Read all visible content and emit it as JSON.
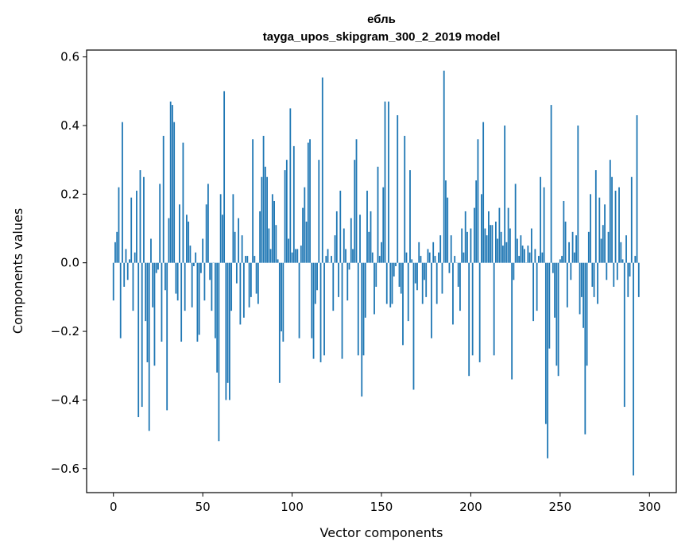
{
  "chart_data": {
    "type": "bar",
    "title_line1": "ебль",
    "title_line2": "tayga_upos_skipgram_300_2_2019 model",
    "xlabel": "Vector components",
    "ylabel": "Components values",
    "xlim": [
      -15,
      315
    ],
    "ylim": [
      -0.67,
      0.62
    ],
    "x_ticks": [
      0,
      50,
      100,
      150,
      200,
      250,
      300
    ],
    "x_tick_labels": [
      "0",
      "50",
      "100",
      "150",
      "200",
      "250",
      "300"
    ],
    "y_ticks": [
      -0.6,
      -0.4,
      -0.2,
      0.0,
      0.2,
      0.4,
      0.6
    ],
    "y_tick_labels": [
      "−0.6",
      "−0.4",
      "−0.2",
      "0.0",
      "0.2",
      "0.4",
      "0.6"
    ],
    "bar_color": "#1f77b4",
    "grid": false,
    "values": [
      -0.11,
      0.06,
      0.09,
      0.22,
      -0.22,
      0.41,
      -0.07,
      0.04,
      -0.05,
      0.01,
      0.19,
      -0.14,
      0.03,
      0.21,
      -0.45,
      0.27,
      -0.42,
      0.25,
      -0.17,
      -0.29,
      -0.49,
      0.07,
      -0.13,
      -0.3,
      -0.03,
      -0.02,
      0.23,
      -0.23,
      0.37,
      -0.08,
      -0.43,
      0.13,
      0.47,
      0.46,
      0.41,
      -0.09,
      -0.11,
      0.17,
      -0.23,
      0.35,
      -0.14,
      0.14,
      0.12,
      0.05,
      -0.13,
      -0.01,
      0.03,
      -0.23,
      -0.21,
      -0.03,
      0.07,
      -0.11,
      0.17,
      0.23,
      -0.05,
      -0.14,
      0.0,
      -0.22,
      -0.32,
      -0.52,
      0.2,
      0.14,
      0.5,
      -0.4,
      -0.35,
      -0.4,
      -0.14,
      0.2,
      0.09,
      -0.06,
      0.13,
      -0.18,
      0.08,
      -0.16,
      0.02,
      0.02,
      -0.13,
      -0.1,
      0.36,
      0.02,
      -0.09,
      -0.12,
      0.15,
      0.25,
      0.37,
      0.28,
      0.25,
      0.1,
      0.04,
      0.2,
      0.18,
      0.11,
      0.01,
      -0.35,
      -0.2,
      -0.23,
      0.27,
      0.3,
      0.07,
      0.45,
      0.03,
      0.34,
      0.04,
      0.04,
      -0.22,
      0.05,
      0.16,
      0.22,
      0.12,
      0.35,
      0.36,
      -0.22,
      -0.28,
      -0.12,
      -0.08,
      0.3,
      -0.29,
      0.54,
      -0.27,
      0.02,
      0.04,
      0.0,
      0.02,
      -0.14,
      0.08,
      0.15,
      -0.1,
      0.21,
      -0.28,
      0.1,
      0.04,
      -0.11,
      -0.02,
      0.13,
      0.04,
      0.3,
      0.36,
      -0.27,
      0.14,
      -0.39,
      -0.27,
      -0.16,
      0.21,
      0.09,
      0.15,
      0.03,
      -0.15,
      -0.07,
      0.28,
      0.02,
      0.06,
      0.22,
      0.47,
      -0.12,
      0.47,
      -0.13,
      -0.12,
      -0.04,
      -0.01,
      0.43,
      -0.07,
      -0.09,
      -0.24,
      0.37,
      0.03,
      -0.17,
      0.27,
      0.01,
      -0.37,
      -0.06,
      -0.08,
      0.06,
      0.02,
      -0.12,
      -0.05,
      -0.1,
      0.04,
      0.03,
      -0.22,
      0.06,
      0.02,
      -0.12,
      0.03,
      0.08,
      -0.09,
      0.56,
      0.24,
      0.19,
      -0.03,
      0.08,
      -0.18,
      0.02,
      0.0,
      -0.07,
      -0.14,
      0.1,
      0.03,
      0.15,
      0.09,
      -0.33,
      0.1,
      -0.27,
      0.16,
      0.24,
      0.36,
      -0.29,
      0.2,
      0.41,
      0.1,
      0.08,
      0.15,
      0.11,
      0.11,
      -0.27,
      0.12,
      0.07,
      0.16,
      0.09,
      0.05,
      0.4,
      0.06,
      0.16,
      0.1,
      -0.34,
      -0.05,
      0.23,
      0.07,
      0.02,
      0.08,
      0.05,
      0.04,
      0.0,
      0.05,
      0.03,
      0.1,
      -0.17,
      0.04,
      -0.14,
      0.02,
      0.25,
      0.03,
      0.22,
      -0.47,
      -0.57,
      -0.25,
      0.46,
      -0.03,
      -0.16,
      -0.3,
      -0.33,
      0.01,
      0.02,
      0.18,
      0.12,
      -0.13,
      0.06,
      -0.05,
      0.09,
      0.03,
      0.08,
      0.4,
      -0.15,
      -0.1,
      -0.19,
      -0.5,
      -0.3,
      0.09,
      0.2,
      -0.07,
      -0.1,
      0.27,
      -0.12,
      0.19,
      0.07,
      0.11,
      0.17,
      -0.05,
      0.09,
      0.3,
      0.25,
      -0.07,
      0.21,
      -0.05,
      0.22,
      0.06,
      0.01,
      -0.42,
      0.08,
      -0.1,
      -0.04,
      0.25,
      -0.62,
      0.02,
      0.43,
      -0.1
    ]
  }
}
